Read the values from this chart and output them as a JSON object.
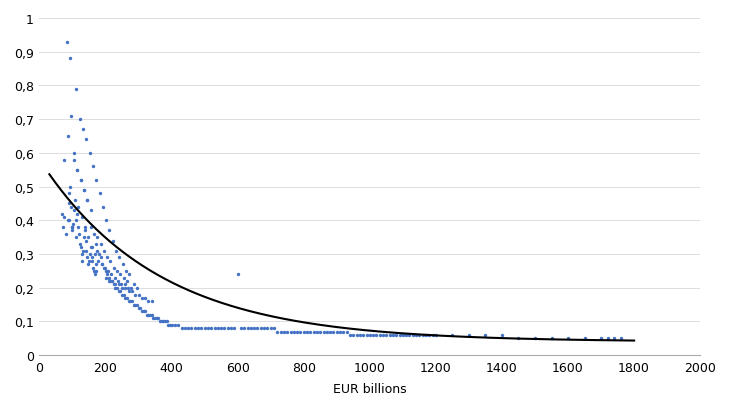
{
  "title": "",
  "xlabel": "EUR billions",
  "ylabel": "",
  "xlim": [
    0,
    2000
  ],
  "ylim": [
    0,
    1.0
  ],
  "xticks": [
    0,
    200,
    400,
    600,
    800,
    1000,
    1200,
    1400,
    1600,
    1800,
    2000
  ],
  "yticks": [
    0,
    0.1,
    0.2,
    0.3,
    0.4,
    0.5,
    0.6,
    0.7,
    0.8,
    0.9,
    1
  ],
  "ytick_labels": [
    "0",
    "0,1",
    "0,2",
    "0,3",
    "0,4",
    "0,5",
    "0,6",
    "0,7",
    "0,8",
    "0,9",
    "1"
  ],
  "dot_color": "#4472C4",
  "curve_color": "#000000",
  "curve_a": 0.54,
  "curve_b": 0.0028,
  "curve_c": 0.04,
  "background_color": "#ffffff",
  "scatter_x": [
    68,
    72,
    75,
    80,
    85,
    88,
    90,
    92,
    95,
    98,
    100,
    102,
    105,
    108,
    110,
    112,
    115,
    118,
    120,
    122,
    125,
    128,
    130,
    132,
    135,
    138,
    140,
    142,
    145,
    148,
    150,
    152,
    155,
    158,
    160,
    162,
    165,
    168,
    170,
    172,
    75,
    85,
    95,
    105,
    115,
    125,
    135,
    145,
    155,
    165,
    170,
    175,
    180,
    185,
    190,
    195,
    200,
    205,
    210,
    215,
    220,
    225,
    230,
    235,
    240,
    245,
    250,
    255,
    260,
    265,
    270,
    275,
    280,
    285,
    290,
    295,
    300,
    305,
    310,
    315,
    320,
    325,
    330,
    335,
    340,
    345,
    350,
    355,
    360,
    365,
    370,
    375,
    380,
    385,
    390,
    395,
    400,
    410,
    420,
    430,
    440,
    450,
    460,
    470,
    480,
    490,
    500,
    510,
    520,
    530,
    540,
    550,
    560,
    570,
    580,
    590,
    600,
    610,
    620,
    630,
    640,
    650,
    660,
    670,
    680,
    690,
    700,
    710,
    720,
    730,
    740,
    750,
    760,
    770,
    780,
    790,
    800,
    810,
    820,
    830,
    840,
    850,
    860,
    870,
    880,
    890,
    900,
    910,
    920,
    930,
    940,
    950,
    960,
    970,
    980,
    990,
    1000,
    1010,
    1020,
    1030,
    1040,
    1050,
    1060,
    1070,
    1080,
    1090,
    1100,
    1110,
    1120,
    1130,
    1140,
    1150,
    1160,
    1170,
    1180,
    1190,
    1200,
    1250,
    1300,
    1350,
    1400,
    1450,
    1500,
    1550,
    1600,
    1650,
    1700,
    1720,
    1740,
    1760,
    82,
    92,
    112,
    122,
    132,
    142,
    152,
    162,
    172,
    182,
    192,
    202,
    212,
    222,
    232,
    242,
    252,
    262,
    272,
    88,
    98,
    118,
    128,
    138,
    148,
    158,
    168,
    178,
    188,
    198,
    208,
    218,
    228,
    238,
    248,
    258,
    268,
    278,
    175,
    185,
    195,
    205,
    215,
    225,
    235,
    245,
    255,
    265,
    285,
    295,
    105,
    115,
    125,
    135,
    145,
    155,
    200,
    210,
    220,
    230,
    240,
    250,
    260,
    270,
    280,
    290,
    300,
    310,
    320,
    330,
    340
  ],
  "scatter_y": [
    0.42,
    0.38,
    0.41,
    0.36,
    0.4,
    0.45,
    0.48,
    0.5,
    0.44,
    0.38,
    0.37,
    0.39,
    0.43,
    0.46,
    0.35,
    0.4,
    0.42,
    0.38,
    0.36,
    0.33,
    0.32,
    0.3,
    0.28,
    0.31,
    0.35,
    0.37,
    0.34,
    0.31,
    0.29,
    0.27,
    0.28,
    0.3,
    0.32,
    0.29,
    0.28,
    0.26,
    0.25,
    0.24,
    0.25,
    0.27,
    0.58,
    0.65,
    0.71,
    0.6,
    0.55,
    0.52,
    0.49,
    0.46,
    0.38,
    0.36,
    0.33,
    0.31,
    0.3,
    0.29,
    0.27,
    0.26,
    0.25,
    0.24,
    0.23,
    0.22,
    0.22,
    0.21,
    0.2,
    0.2,
    0.19,
    0.19,
    0.18,
    0.18,
    0.17,
    0.17,
    0.16,
    0.16,
    0.16,
    0.15,
    0.15,
    0.15,
    0.14,
    0.14,
    0.13,
    0.13,
    0.13,
    0.12,
    0.12,
    0.12,
    0.12,
    0.11,
    0.11,
    0.11,
    0.11,
    0.1,
    0.1,
    0.1,
    0.1,
    0.1,
    0.09,
    0.09,
    0.09,
    0.09,
    0.09,
    0.08,
    0.08,
    0.08,
    0.08,
    0.08,
    0.08,
    0.08,
    0.08,
    0.08,
    0.08,
    0.08,
    0.08,
    0.08,
    0.08,
    0.08,
    0.08,
    0.08,
    0.24,
    0.08,
    0.08,
    0.08,
    0.08,
    0.08,
    0.08,
    0.08,
    0.08,
    0.08,
    0.08,
    0.08,
    0.07,
    0.07,
    0.07,
    0.07,
    0.07,
    0.07,
    0.07,
    0.07,
    0.07,
    0.07,
    0.07,
    0.07,
    0.07,
    0.07,
    0.07,
    0.07,
    0.07,
    0.07,
    0.07,
    0.07,
    0.07,
    0.07,
    0.06,
    0.06,
    0.06,
    0.06,
    0.06,
    0.06,
    0.06,
    0.06,
    0.06,
    0.06,
    0.06,
    0.06,
    0.06,
    0.06,
    0.06,
    0.06,
    0.06,
    0.06,
    0.06,
    0.06,
    0.06,
    0.06,
    0.06,
    0.06,
    0.06,
    0.06,
    0.06,
    0.06,
    0.06,
    0.06,
    0.06,
    0.05,
    0.05,
    0.05,
    0.05,
    0.05,
    0.05,
    0.05,
    0.05,
    0.05,
    0.93,
    0.88,
    0.79,
    0.7,
    0.67,
    0.64,
    0.6,
    0.56,
    0.52,
    0.48,
    0.44,
    0.4,
    0.37,
    0.34,
    0.31,
    0.29,
    0.27,
    0.25,
    0.24,
    0.4,
    0.38,
    0.44,
    0.41,
    0.38,
    0.35,
    0.32,
    0.3,
    0.28,
    0.27,
    0.26,
    0.25,
    0.24,
    0.23,
    0.22,
    0.21,
    0.21,
    0.2,
    0.2,
    0.35,
    0.33,
    0.31,
    0.29,
    0.28,
    0.26,
    0.25,
    0.24,
    0.23,
    0.22,
    0.21,
    0.2,
    0.58,
    0.55,
    0.52,
    0.49,
    0.46,
    0.43,
    0.23,
    0.22,
    0.22,
    0.21,
    0.21,
    0.2,
    0.2,
    0.19,
    0.19,
    0.18,
    0.18,
    0.17,
    0.17,
    0.16,
    0.16
  ]
}
